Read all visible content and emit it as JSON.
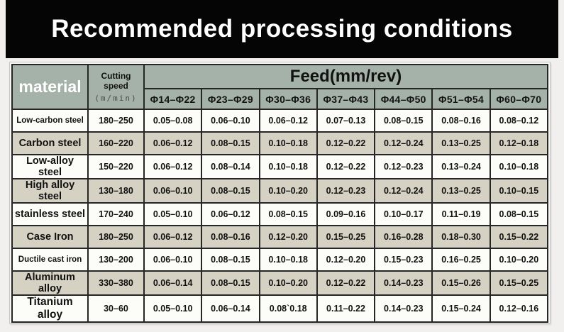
{
  "title": "Recommended processing conditions",
  "table": {
    "material_header": "material",
    "cutting_speed_header": "Cutting speed",
    "cutting_speed_unit": "(m/min)",
    "feed_header": "Feed(mm/rev)",
    "diameter_columns": [
      "Φ14–Φ22",
      "Φ23–Φ29",
      "Φ30–Φ36",
      "Φ37–Φ43",
      "Φ44–Φ50",
      "Φ51–Φ54",
      "Φ60–Φ70"
    ],
    "rows": [
      {
        "material": "Low-carbon steel",
        "cutting_speed": "180–250",
        "feeds": [
          "0.05–0.08",
          "0.06–0.10",
          "0.06–0.12",
          "0.07–0.13",
          "0.08–0.15",
          "0.08–0.16",
          "0.08–0.12"
        ]
      },
      {
        "material": "Carbon steel",
        "cutting_speed": "160–220",
        "feeds": [
          "0.06–0.12",
          "0.08–0.15",
          "0.10–0.18",
          "0.12–0.22",
          "0.12–0.24",
          "0.13–0.25",
          "0.12–0.18"
        ]
      },
      {
        "material": "Low-alloy steel",
        "cutting_speed": "150–220",
        "feeds": [
          "0.06–0.12",
          "0.08–0.14",
          "0.10–0.18",
          "0.12–0.22",
          "0.12–0.23",
          "0.13–0.24",
          "0.10–0.18"
        ]
      },
      {
        "material": "High alloy steel",
        "cutting_speed": "130–180",
        "feeds": [
          "0.06–0.10",
          "0.08–0.15",
          "0.10–0.20",
          "0.12–0.23",
          "0.12–0.24",
          "0.13–0.25",
          "0.10–0.15"
        ]
      },
      {
        "material": "stainless steel",
        "cutting_speed": "170–240",
        "feeds": [
          "0.05–0.10",
          "0.06–0.12",
          "0.08–0.15",
          "0.09–0.16",
          "0.10–0.17",
          "0.11–0.19",
          "0.08–0.15"
        ]
      },
      {
        "material": "Case Iron",
        "cutting_speed": "180–250",
        "feeds": [
          "0.06–0.12",
          "0.08–0.16",
          "0.12–0.20",
          "0.15–0.25",
          "0.16–0.28",
          "0.18–0.30",
          "0.15–0.22"
        ]
      },
      {
        "material": "Ductile cast iron",
        "cutting_speed": "130–200",
        "feeds": [
          "0.06–0.10",
          "0.08–0.15",
          "0.10–0.18",
          "0.12–0.20",
          "0.15–0.23",
          "0.16–0.25",
          "0.10–0.20"
        ]
      },
      {
        "material": "Aluminum alloy",
        "cutting_speed": "330–380",
        "feeds": [
          "0.06–0.14",
          "0.08–0.15",
          "0.10–0.20",
          "0.12–0.22",
          "0.14–0.23",
          "0.15–0.26",
          "0.15–0.25"
        ]
      },
      {
        "material": "Titanium alloy",
        "cutting_speed": "30–60",
        "feeds": [
          "0.05–0.10",
          "0.06–0.14",
          "0.08`0.18",
          "0.11–0.22",
          "0.14–0.23",
          "0.15–0.24",
          "0.12–0.16"
        ]
      }
    ]
  },
  "colors": {
    "title_bg": "#050505",
    "title_fg": "#ffffff",
    "header_bg": "#a4b2a9",
    "stripe_bg": "#d5d1c3",
    "row_bg": "#fcfcf9",
    "border": "#262626",
    "page_bg": "#f1f0ee"
  }
}
